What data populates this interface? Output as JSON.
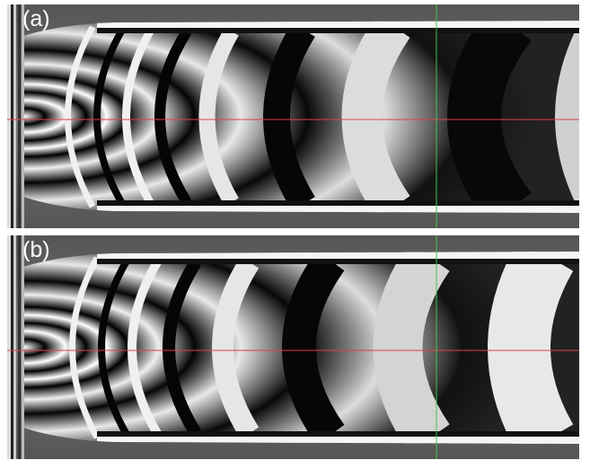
{
  "figure": {
    "panels": [
      {
        "label": "(a)"
      },
      {
        "label": "(b)"
      }
    ],
    "colors": {
      "fringe_light": "#f2f2f2",
      "fringe_dark": "#050505",
      "background": "#6e6e6e",
      "horizontal_marker": "#e04040",
      "vertical_marker": "#3fc84f"
    }
  }
}
